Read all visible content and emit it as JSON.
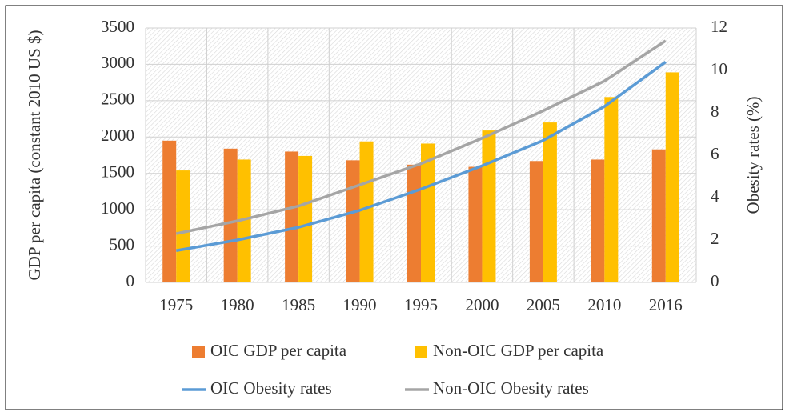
{
  "chart_data": {
    "type": "bar",
    "categories": [
      "1975",
      "1980",
      "1985",
      "1990",
      "1995",
      "2000",
      "2005",
      "2010",
      "2016"
    ],
    "ylabel": "GDP per capita (constant 2010 US $)",
    "y2label": "Obesity rates (%)",
    "ylim": [
      0,
      3500
    ],
    "yticks": [
      0,
      500,
      1000,
      1500,
      2000,
      2500,
      3000,
      3500
    ],
    "y2lim": [
      0,
      12
    ],
    "y2ticks": [
      0,
      2,
      4,
      6,
      8,
      10,
      12
    ],
    "grid": true,
    "series": [
      {
        "name": "OIC GDP per capita",
        "type": "bar",
        "color": "#ed7d31",
        "values": [
          1950,
          1840,
          1800,
          1680,
          1620,
          1590,
          1670,
          1690,
          1830
        ]
      },
      {
        "name": "Non-OIC GDP per capita",
        "type": "bar",
        "color": "#ffc000",
        "values": [
          1540,
          1690,
          1740,
          1940,
          1910,
          2090,
          2200,
          2550,
          2890
        ]
      },
      {
        "name": "OIC Obesity rates",
        "type": "line",
        "axis": "y2",
        "color": "#5b9bd5",
        "values": [
          1.5,
          2.0,
          2.6,
          3.4,
          4.4,
          5.5,
          6.7,
          8.3,
          10.4
        ]
      },
      {
        "name": "Non-OIC Obesity rates",
        "type": "line",
        "axis": "y2",
        "color": "#a5a5a5",
        "values": [
          2.3,
          2.9,
          3.6,
          4.6,
          5.6,
          6.8,
          8.1,
          9.5,
          11.4
        ]
      }
    ]
  }
}
